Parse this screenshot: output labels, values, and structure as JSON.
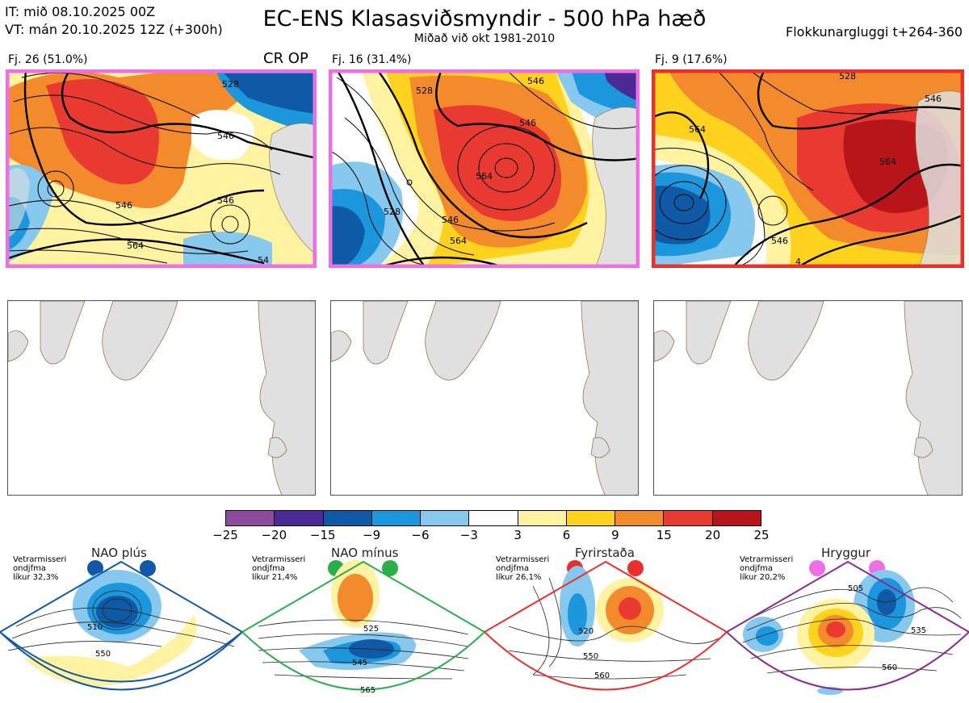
{
  "header": {
    "it_line": "IT: mið 08.10.2025 00Z",
    "vt_line": "VT: mán 20.10.2025 12Z  (+300h)",
    "title": "EC-ENS Klasasviðsmyndir - 500 hPa hæð",
    "subtitle": "Miðað við okt 1981-2010",
    "window": "Flokkunargluggi t+264-360"
  },
  "clusters": [
    {
      "label": "Fj. 26 (51.0%)",
      "badge": "CR OP",
      "frame_color": "#ee6ee6",
      "contours": [
        "528",
        "546",
        "546",
        "564",
        "546",
        "54"
      ]
    },
    {
      "label": "Fj. 16 (31.4%)",
      "badge": "",
      "frame_color": "#ee6ee6",
      "contours": [
        "546",
        "528",
        "546",
        "564",
        "528",
        "546",
        "564"
      ]
    },
    {
      "label": "Fj. 9 (17.6%)",
      "badge": "",
      "frame_color": "#e8302c",
      "contours": [
        "528",
        "546",
        "564",
        "546",
        "564",
        "4"
      ]
    }
  ],
  "colorbar": {
    "colors": [
      "#8c4b9c",
      "#4a2a95",
      "#0f5aa6",
      "#1c96dc",
      "#86c8ee",
      "#ffffff",
      "#fff2a0",
      "#ffd21e",
      "#f38a2c",
      "#e83a30",
      "#b8151a"
    ],
    "ticks": [
      "−25",
      "−20",
      "−15",
      "−9",
      "−6",
      "−3",
      "3",
      "6",
      "9",
      "15",
      "20",
      "25"
    ]
  },
  "regimes": [
    {
      "name": "NAO plús",
      "note_1": "Vetrarmisseri",
      "note_2": "ondjfma",
      "note_3": "líkur 32,3%",
      "dot_color": "#1358a8",
      "outline": "#1358a8",
      "contours": [
        "510",
        "550"
      ]
    },
    {
      "name": "NAO mínus",
      "note_1": "Vetrarmisseri",
      "note_2": "ondjfma",
      "note_3": "líkur 21,4%",
      "dot_color": "#2aae4a",
      "outline": "#2aae4a",
      "contours": [
        "525",
        "545",
        "565"
      ]
    },
    {
      "name": "Fyrirstaða",
      "note_1": "Vetrarmisseri",
      "note_2": "ondjfma",
      "note_3": "líkur 26,1%",
      "dot_color": "#e8302c",
      "outline": "#e8302c",
      "contours": [
        "520",
        "550",
        "560"
      ]
    },
    {
      "name": "Hryggur",
      "note_1": "Vetrarmisseri",
      "note_2": "ondjfma",
      "note_3": "líkur 20,2%",
      "dot_color": "#ee6ee6",
      "outline": "#8a2a90",
      "contours": [
        "505",
        "535",
        "560"
      ]
    }
  ]
}
